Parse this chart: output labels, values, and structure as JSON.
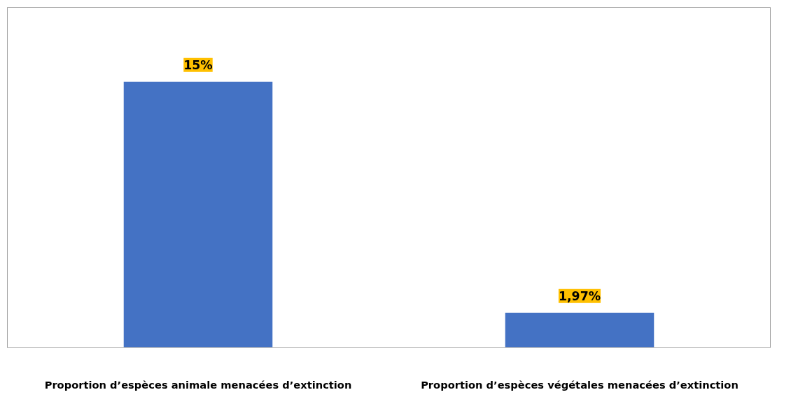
{
  "chart_data": {
    "type": "bar",
    "categories": [
      "Proportion d’espèces animale menacées d’extinction",
      "Proportion d’espèces végétales menacées d’extinction"
    ],
    "values": [
      15,
      1.97
    ],
    "color": "#4472c4",
    "value_labels": [
      "15%",
      "1,97%"
    ],
    "grid": false
  }
}
